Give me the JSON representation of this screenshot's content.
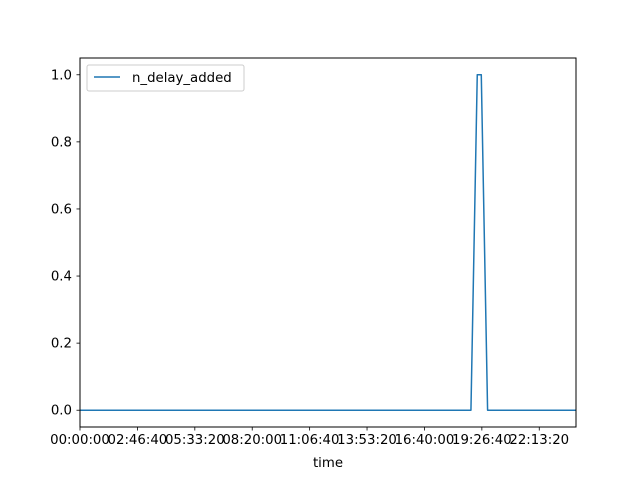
{
  "chart_data": {
    "type": "line",
    "xlabel": "time",
    "ylabel": "",
    "xlim": [
      0,
      86400
    ],
    "ylim": [
      -0.05,
      1.05
    ],
    "grid": false,
    "legend_position": "upper-left",
    "x_ticks": [
      {
        "value": 0,
        "label": "00:00:00"
      },
      {
        "value": 10000,
        "label": "02:46:40"
      },
      {
        "value": 20000,
        "label": "05:33:20"
      },
      {
        "value": 30000,
        "label": "08:20:00"
      },
      {
        "value": 40000,
        "label": "11:06:40"
      },
      {
        "value": 50000,
        "label": "13:53:20"
      },
      {
        "value": 60000,
        "label": "16:40:00"
      },
      {
        "value": 70000,
        "label": "19:26:40"
      },
      {
        "value": 80000,
        "label": "22:13:20"
      }
    ],
    "y_ticks": [
      {
        "value": 0.0,
        "label": "0.0"
      },
      {
        "value": 0.2,
        "label": "0.2"
      },
      {
        "value": 0.4,
        "label": "0.4"
      },
      {
        "value": 0.6,
        "label": "0.6"
      },
      {
        "value": 0.8,
        "label": "0.8"
      },
      {
        "value": 1.0,
        "label": "1.0"
      }
    ],
    "series": [
      {
        "name": "n_delay_added",
        "color": "#1f77b4",
        "x": [
          0,
          68100,
          69200,
          69900,
          71000,
          86400
        ],
        "y": [
          0,
          0,
          1,
          1,
          0,
          0
        ]
      }
    ]
  }
}
